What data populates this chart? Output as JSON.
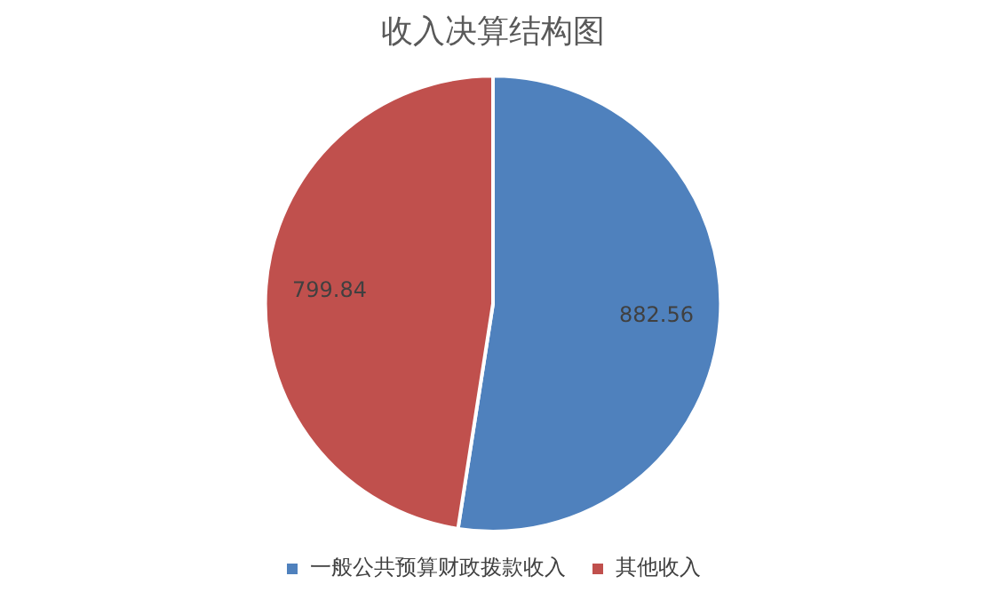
{
  "chart_data": {
    "type": "pie",
    "title": "收入决算结构图",
    "categories": [
      "一般公共预算财政拨款收入",
      "其他收入"
    ],
    "values": [
      882.56,
      799.84
    ],
    "colors": [
      "#4f81bd",
      "#c0504d"
    ],
    "data_labels": true,
    "legend": "bottom"
  }
}
